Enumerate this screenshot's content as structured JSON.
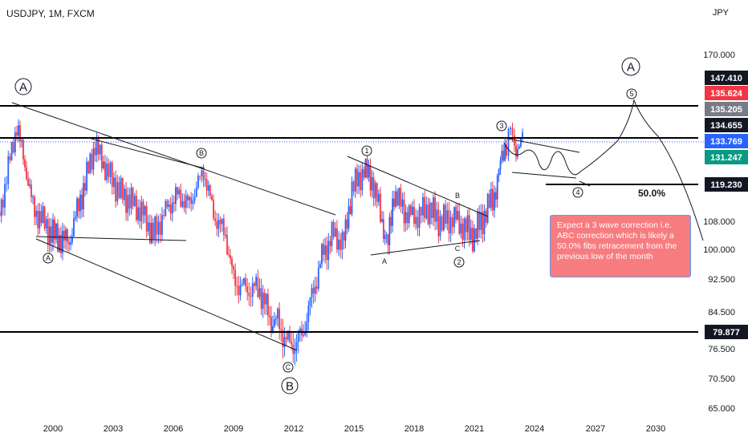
{
  "chart_data": {
    "type": "candlestick",
    "title": "USDJPY, 1M, FXCM",
    "currency": "JPY",
    "x_ticks": [
      "2000",
      "2003",
      "2006",
      "2009",
      "2012",
      "2015",
      "2018",
      "2021",
      "2024",
      "2027",
      "2030"
    ],
    "y_ticks": [
      "170.000",
      "108.000",
      "100.000",
      "92.500",
      "84.500",
      "76.500",
      "70.500",
      "65.000"
    ],
    "price_labels": [
      {
        "value": "147.410",
        "color": "#131722"
      },
      {
        "value": "135.624",
        "color": "#f23645"
      },
      {
        "value": "135.205",
        "color": "#787b86"
      },
      {
        "value": "134.655",
        "color": "#131722"
      },
      {
        "value": "133.769",
        "color": "#2962ff"
      },
      {
        "value": "131.247",
        "color": "#089981"
      },
      {
        "value": "119.230",
        "color": "#131722"
      },
      {
        "value": "79.877",
        "color": "#131722"
      }
    ],
    "fib_label": "50.0%",
    "wave_labels": [
      "A",
      "B",
      "C",
      "A",
      "B",
      "C",
      "1",
      "2",
      "3",
      "4",
      "5",
      "A",
      "B",
      "C"
    ],
    "annotation": "Expect a 3 wave correction i.e. ABC correction which is likely a 50.0% fibs retracement from the previous low of the month",
    "price_path": [
      [
        1997.0,
        98
      ],
      [
        1998.2,
        140
      ],
      [
        1999.0,
        112
      ],
      [
        2000.0,
        104
      ],
      [
        2000.8,
        102
      ],
      [
        2001.6,
        120
      ],
      [
        2002.1,
        133
      ],
      [
        2002.6,
        125
      ],
      [
        2003.3,
        117
      ],
      [
        2003.9,
        114
      ],
      [
        2004.5,
        110
      ],
      [
        2005.0,
        104
      ],
      [
        2005.7,
        112
      ],
      [
        2006.2,
        116
      ],
      [
        2006.8,
        113
      ],
      [
        2007.5,
        124
      ],
      [
        2008.0,
        110
      ],
      [
        2008.6,
        104
      ],
      [
        2009.0,
        92
      ],
      [
        2009.6,
        90
      ],
      [
        2010.3,
        90
      ],
      [
        2010.8,
        83
      ],
      [
        2011.2,
        82
      ],
      [
        2011.8,
        77
      ],
      [
        2012.4,
        79
      ],
      [
        2012.9,
        88
      ],
      [
        2013.4,
        98
      ],
      [
        2013.9,
        104
      ],
      [
        2014.5,
        102
      ],
      [
        2014.9,
        118
      ],
      [
        2015.5,
        124
      ],
      [
        2015.9,
        121
      ],
      [
        2016.4,
        108
      ],
      [
        2016.7,
        101
      ],
      [
        2017.0,
        117
      ],
      [
        2017.5,
        111
      ],
      [
        2018.0,
        109
      ],
      [
        2018.7,
        112
      ],
      [
        2019.3,
        108
      ],
      [
        2020.0,
        109
      ],
      [
        2020.5,
        106
      ],
      [
        2021.0,
        104
      ],
      [
        2021.5,
        110
      ],
      [
        2022.0,
        116
      ],
      [
        2022.3,
        126
      ],
      [
        2022.6,
        134
      ],
      [
        2022.8,
        139
      ],
      [
        2023.0,
        131
      ],
      [
        2023.4,
        135
      ]
    ]
  }
}
